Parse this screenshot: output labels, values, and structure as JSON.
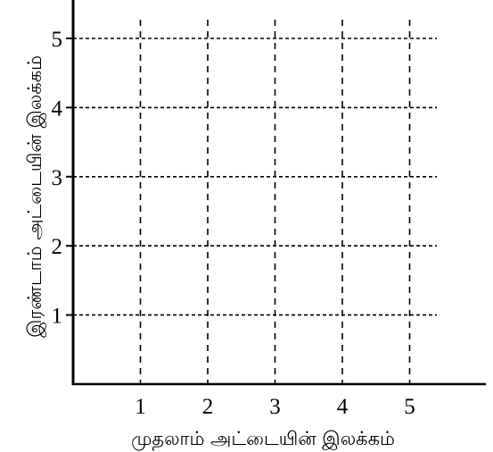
{
  "chart_data": {
    "type": "scatter",
    "title": "",
    "xlabel": "முதலாம் அட்டையின் இலக்கம்",
    "ylabel": "இரண்டாம் அட்டையின் இலக்கம்",
    "x_ticks": [
      1,
      2,
      3,
      4,
      5
    ],
    "y_ticks": [
      1,
      2,
      3,
      4,
      5
    ],
    "xlim": [
      0,
      5.45
    ],
    "ylim": [
      0,
      5.55
    ],
    "grid": true,
    "grid_style": "dashed",
    "series": []
  }
}
